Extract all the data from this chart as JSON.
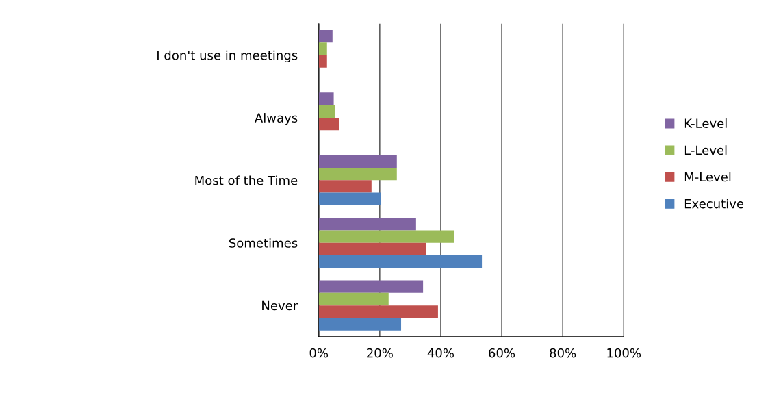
{
  "chart_data": {
    "type": "bar",
    "orientation": "horizontal",
    "categories": [
      "I don't use in meetings",
      "Always",
      "Most of the Time",
      "Sometimes",
      "Never"
    ],
    "series": [
      {
        "name": "K-Level",
        "color": "#8064a2",
        "values": [
          4.5,
          4.9,
          25.6,
          31.9,
          34.2
        ]
      },
      {
        "name": "L-Level",
        "color": "#9bbb59",
        "values": [
          2.7,
          5.4,
          25.6,
          44.5,
          22.9
        ]
      },
      {
        "name": "M-Level",
        "color": "#c0504d",
        "values": [
          2.7,
          6.7,
          17.3,
          35.1,
          39.1
        ]
      },
      {
        "name": "Executive",
        "color": "#4f81bd",
        "values": [
          0,
          0,
          20.4,
          53.5,
          27.0
        ]
      }
    ],
    "xlim": [
      0,
      100
    ],
    "xticks": [
      {
        "value": 0,
        "label": "0%"
      },
      {
        "value": 20,
        "label": "20%"
      },
      {
        "value": 40,
        "label": "40%"
      },
      {
        "value": 60,
        "label": "60%"
      },
      {
        "value": 80,
        "label": "80%"
      },
      {
        "value": 100,
        "label": "100%"
      }
    ],
    "grid": "x",
    "legend": "right"
  }
}
